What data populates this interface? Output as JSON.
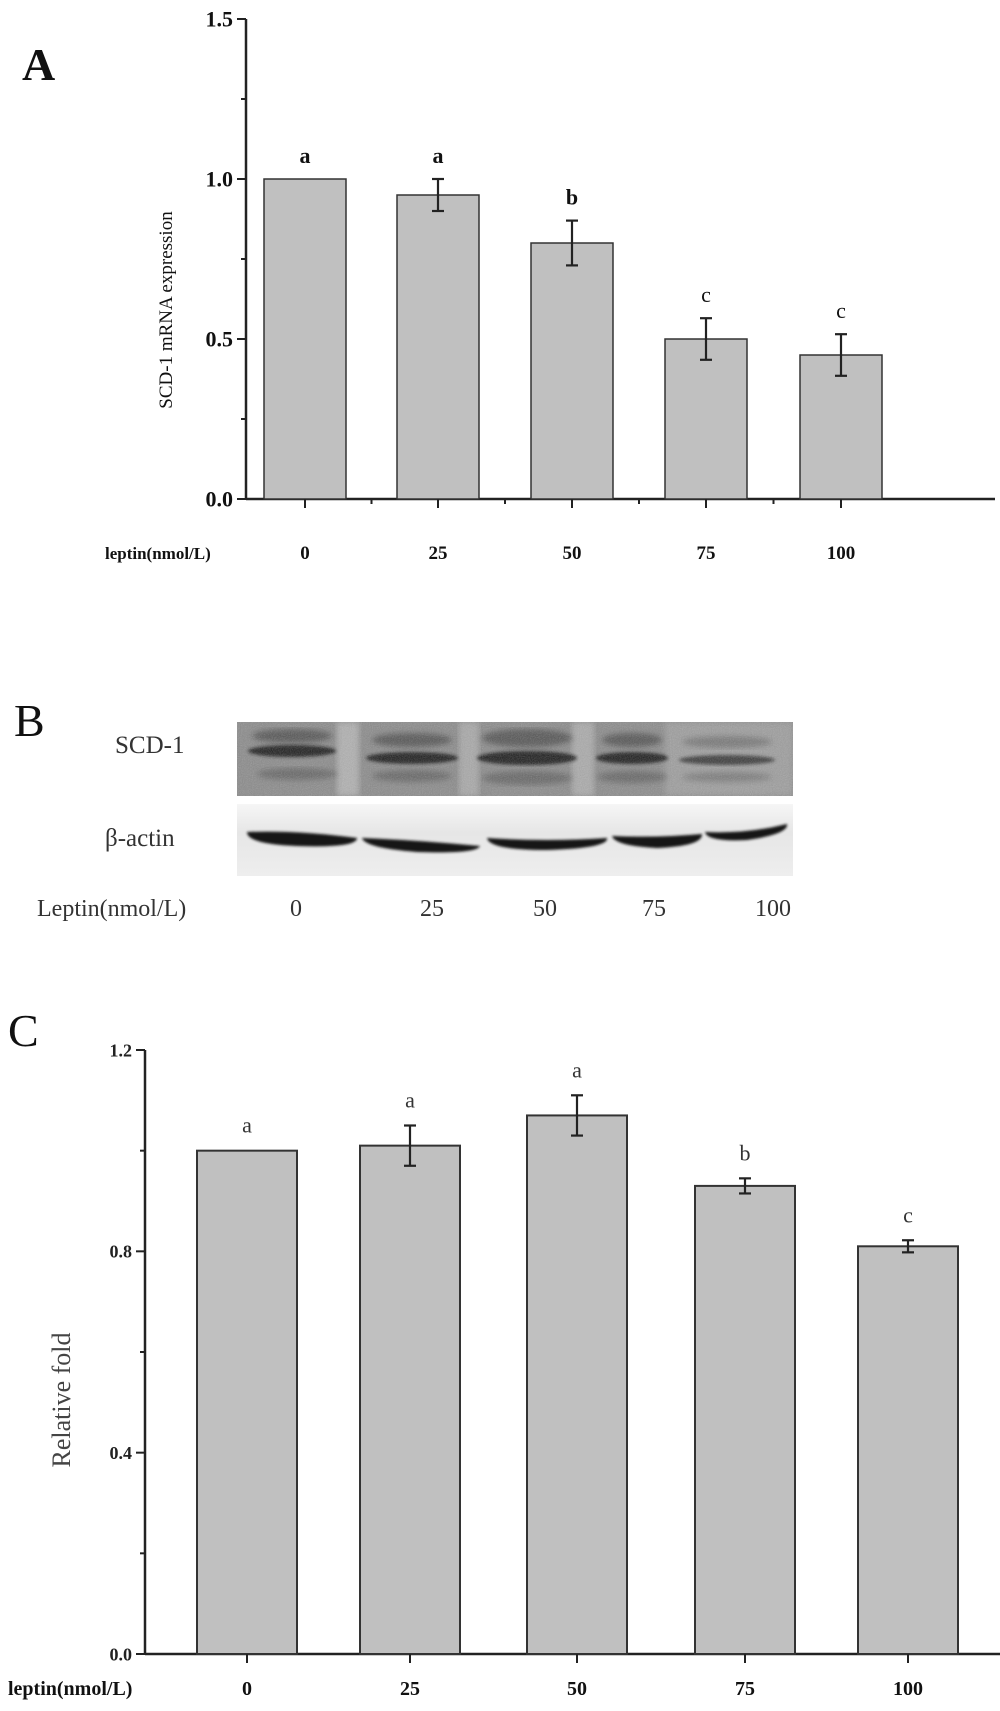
{
  "panels": {
    "A": {
      "letter": "A"
    },
    "B": {
      "letter": "B",
      "row_labels": [
        "SCD-1",
        "β-actin"
      ],
      "x_label": "Leptin(nmol/L)",
      "lanes": [
        "0",
        "25",
        "50",
        "75",
        "100"
      ]
    },
    "C": {
      "letter": "C"
    }
  },
  "chart_data": [
    {
      "panel": "A",
      "type": "bar",
      "title": "",
      "xlabel": "leptin(nmol/L)",
      "ylabel": "SCD-1 mRNA expression",
      "categories": [
        "0",
        "25",
        "50",
        "75",
        "100"
      ],
      "values": [
        1.0,
        0.95,
        0.8,
        0.5,
        0.45
      ],
      "errors": [
        0.0,
        0.05,
        0.07,
        0.065,
        0.065
      ],
      "significance": [
        "a",
        "a",
        "b",
        "c",
        "c"
      ],
      "ylim": [
        0,
        1.5
      ],
      "yticks": [
        "0.0",
        "0.5",
        "1.0",
        "1.5"
      ],
      "grid": false,
      "bar_color": "#c0c0c0"
    },
    {
      "panel": "C",
      "type": "bar",
      "title": "",
      "xlabel": "leptin(nmol/L)",
      "ylabel": "Relative  fold",
      "categories": [
        "0",
        "25",
        "50",
        "75",
        "100"
      ],
      "values": [
        1.0,
        1.01,
        1.07,
        0.93,
        0.81
      ],
      "errors": [
        0.0,
        0.04,
        0.04,
        0.015,
        0.012
      ],
      "significance": [
        "a",
        "a",
        "a",
        "b",
        "c"
      ],
      "ylim": [
        0,
        1.2
      ],
      "yticks": [
        "0.0",
        "0.4",
        "0.8",
        "1.2"
      ],
      "grid": false,
      "bar_color": "#c0c0c0"
    }
  ]
}
